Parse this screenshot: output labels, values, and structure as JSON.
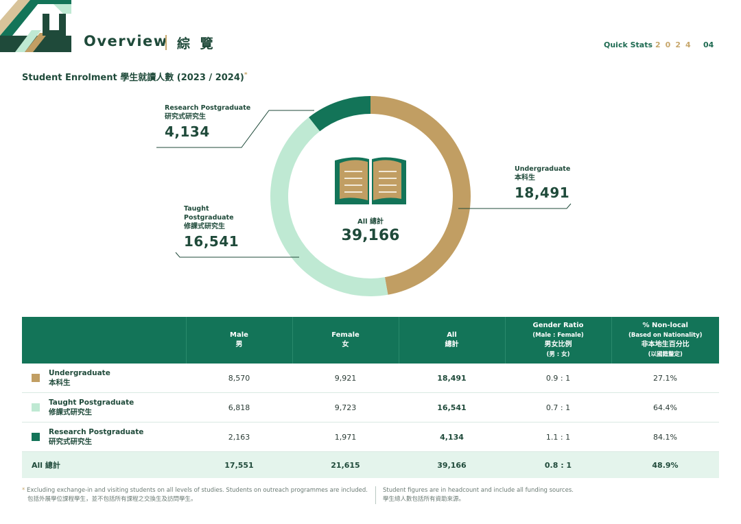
{
  "header": {
    "title": "Overview",
    "title_zh": "綜 覽",
    "quick_stats_label": "Quick Stats",
    "year": "2024",
    "page": "04"
  },
  "section": {
    "title": "Student Enrolment 學生就讀人數 (2023 / 2024)",
    "footnote_mark": "*"
  },
  "colors": {
    "undergraduate": "#c19e63",
    "taught_pg": "#bfe9d3",
    "research_pg": "#137458",
    "header_bg": "#137458",
    "total_row_bg": "#e4f4ec"
  },
  "center": {
    "label": "All 總計",
    "total": "39,166"
  },
  "chart_data": {
    "type": "pie",
    "title": "Student Enrolment 學生就讀人數 (2023 / 2024)",
    "hole": true,
    "categories": [
      "Undergraduate 本科生",
      "Taught Postgraduate 修課式研究生",
      "Research Postgraduate 研究式研究生"
    ],
    "values": [
      18491,
      16541,
      4134
    ],
    "total": 39166,
    "labels": [
      {
        "en": "Undergraduate",
        "zh": "本科生",
        "value": "18,491"
      },
      {
        "en": "Taught Postgraduate",
        "zh": "修課式研究生",
        "value": "16,541"
      },
      {
        "en": "Research Postgraduate",
        "zh": "研究式研究生",
        "value": "4,134"
      }
    ]
  },
  "table": {
    "headers": {
      "male": "Male",
      "male_zh": "男",
      "female": "Female",
      "female_zh": "女",
      "all": "All",
      "all_zh": "總計",
      "ratio": "Gender Ratio",
      "ratio_sub": "(Male : Female)",
      "ratio_zh": "男女比例",
      "ratio_zh_sub": "(男 : 女)",
      "nonlocal": "% Non-local",
      "nonlocal_sub": "(Based on Nationality)",
      "nonlocal_zh": "非本地生百分比",
      "nonlocal_zh_sub": "(以國籍釐定)"
    },
    "rows": [
      {
        "name": "Undergraduate",
        "name_zh": "本科生",
        "male": "8,570",
        "female": "9,921",
        "all": "18,491",
        "ratio": "0.9 : 1",
        "nonlocal": "27.1%"
      },
      {
        "name": "Taught Postgraduate",
        "name_zh": "修課式研究生",
        "male": "6,818",
        "female": "9,723",
        "all": "16,541",
        "ratio": "0.7 : 1",
        "nonlocal": "64.4%"
      },
      {
        "name": "Research Postgraduate",
        "name_zh": "研究式研究生",
        "male": "2,163",
        "female": "1,971",
        "all": "4,134",
        "ratio": "1.1 : 1",
        "nonlocal": "84.1%"
      }
    ],
    "total": {
      "name": "All 總計",
      "male": "17,551",
      "female": "21,615",
      "all": "39,166",
      "ratio": "0.8 : 1",
      "nonlocal": "48.9%"
    }
  },
  "footnotes": {
    "mark": "*",
    "left_en": "Excluding exchange-in and visiting students on all levels of studies. Students on outreach programmes are included.",
    "left_zh": "包括外展學位課程學生，並不包括所有課程之交換生及訪問學生。",
    "right_en": "Student figures are in headcount and include all funding sources.",
    "right_zh": "學生總人數包括所有資助來源。"
  }
}
